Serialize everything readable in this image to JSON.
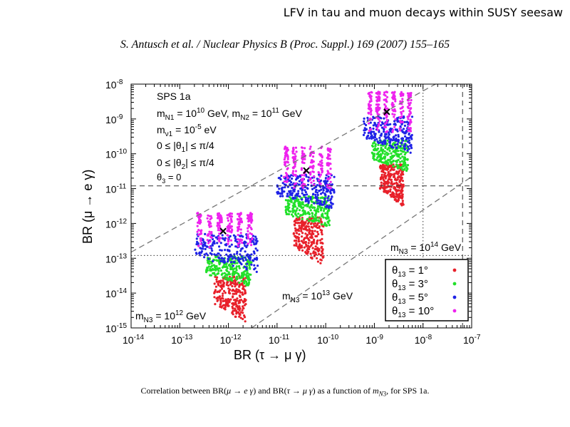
{
  "header": {
    "title": "LFV in tau and muon decays within SUSY seesaw",
    "citation": "S. Antusch et al. / Nuclear Physics B (Proc. Suppl.) 169 (2007) 155–165"
  },
  "caption": "Correlation between BR(μ → e γ) and BR(τ → μ γ) as a function of m_N3, for SPS 1a.",
  "chart_data": {
    "type": "scatter",
    "x_scale": "log",
    "y_scale": "log",
    "xlim": [
      1e-14,
      1e-07
    ],
    "ylim": [
      1e-15,
      1e-08
    ],
    "xlabel": "BR (τ → μ γ)",
    "ylabel": "BR (μ → e γ)",
    "x_ticks": [
      {
        "value": 1e-14,
        "base": "10",
        "exp": "-14"
      },
      {
        "value": 1e-13,
        "base": "10",
        "exp": "-13"
      },
      {
        "value": 1e-12,
        "base": "10",
        "exp": "-12"
      },
      {
        "value": 1e-11,
        "base": "10",
        "exp": "-11"
      },
      {
        "value": 1e-10,
        "base": "10",
        "exp": "-10"
      },
      {
        "value": 1e-09,
        "base": "10",
        "exp": "-9"
      },
      {
        "value": 1e-08,
        "base": "10",
        "exp": "-8"
      },
      {
        "value": 1e-07,
        "base": "10",
        "exp": "-7"
      }
    ],
    "y_ticks": [
      {
        "value": 1e-15,
        "base": "10",
        "exp": "-15"
      },
      {
        "value": 1e-14,
        "base": "10",
        "exp": "-14"
      },
      {
        "value": 1e-13,
        "base": "10",
        "exp": "-13"
      },
      {
        "value": 1e-12,
        "base": "10",
        "exp": "-12"
      },
      {
        "value": 1e-11,
        "base": "10",
        "exp": "-11"
      },
      {
        "value": 1e-10,
        "base": "10",
        "exp": "-10"
      },
      {
        "value": 1e-09,
        "base": "10",
        "exp": "-9"
      },
      {
        "value": 1e-08,
        "base": "10",
        "exp": "-8"
      }
    ],
    "info_text": [
      {
        "text": "SPS 1a"
      },
      {
        "text": "m_N1 = 10^10 GeV, m_N2 = 10^11 GeV"
      },
      {
        "text": "m_ν1 = 10^-5 eV"
      },
      {
        "text": "0 ≤ |θ1| ≤ π/4"
      },
      {
        "text": "0 ≤ |θ2| ≤ π/4"
      },
      {
        "text": "θ3 = 0"
      }
    ],
    "legend": {
      "position": "bottom-right",
      "entries": [
        {
          "label": "θ13 = 1°",
          "color": "#e8202a"
        },
        {
          "label": "θ13 = 3°",
          "color": "#22e02a"
        },
        {
          "label": "θ13 = 5°",
          "color": "#1f22e6"
        },
        {
          "label": "θ13 = 10°",
          "color": "#ee22ee"
        }
      ]
    },
    "clusters": [
      {
        "label": "m_N3 = 10^12 GeV",
        "best_fit": {
          "x": 7.8e-13,
          "y": 6e-13
        },
        "layers": [
          {
            "color": "#ee22ee",
            "x_range": [
              1e-13,
              4e-12
            ],
            "y_range": [
              2e-13,
              2e-12
            ]
          },
          {
            "color": "#1f22e6",
            "x_range": [
              2e-13,
              4e-12
            ],
            "y_range": [
              4e-14,
              5e-13
            ]
          },
          {
            "color": "#22e02a",
            "x_range": [
              3.5e-13,
              3e-12
            ],
            "y_range": [
              1.5e-14,
              1.2e-13
            ]
          },
          {
            "color": "#e8202a",
            "x_range": [
              5e-13,
              2.3e-12
            ],
            "y_range": [
              1.4e-15,
              3e-14
            ]
          }
        ]
      },
      {
        "label": "m_N3 = 10^13 GeV",
        "best_fit": {
          "x": 4e-11,
          "y": 3.3e-11
        },
        "layers": [
          {
            "color": "#ee22ee",
            "x_range": [
              7e-12,
              1.6e-10
            ],
            "y_range": [
              1e-11,
              1.6e-10
            ]
          },
          {
            "color": "#1f22e6",
            "x_range": [
              1e-11,
              1.5e-10
            ],
            "y_range": [
              2.5e-12,
              2.5e-11
            ]
          },
          {
            "color": "#22e02a",
            "x_range": [
              1.5e-11,
              1.2e-10
            ],
            "y_range": [
              8e-13,
              6e-12
            ]
          },
          {
            "color": "#e8202a",
            "x_range": [
              2.2e-11,
              9e-11
            ],
            "y_range": [
              6e-14,
              1.5e-12
            ]
          }
        ]
      },
      {
        "label": "m_N3 = 10^14 GeV",
        "best_fit": {
          "x": 1.8e-09,
          "y": 1.6e-09
        },
        "layers": [
          {
            "color": "#ee22ee",
            "x_range": [
              4e-10,
              7e-09
            ],
            "y_range": [
              4e-10,
              6e-09
            ]
          },
          {
            "color": "#1f22e6",
            "x_range": [
              6e-10,
              6e-09
            ],
            "y_range": [
              1e-10,
              1.2e-09
            ]
          },
          {
            "color": "#22e02a",
            "x_range": [
              9e-10,
              5e-09
            ],
            "y_range": [
              3e-11,
              2.5e-10
            ]
          },
          {
            "color": "#e8202a",
            "x_range": [
              1.3e-09,
              4e-09
            ],
            "y_range": [
              3e-12,
              5e-11
            ]
          }
        ]
      }
    ],
    "reference_lines": [
      {
        "style": "dotted",
        "orientation": "horizontal",
        "value": 1.2e-13
      },
      {
        "style": "dotted",
        "orientation": "vertical",
        "value": 1e-08
      },
      {
        "style": "dashed",
        "orientation": "horizontal",
        "value": 1.2e-11
      },
      {
        "style": "dashed",
        "orientation": "vertical",
        "value": 6.5e-08
      }
    ],
    "diagonal_lines": [
      {
        "style": "dashed",
        "from": [
          1e-14,
          1.5e-13
        ],
        "to": [
          1.8e-08,
          1e-08
        ]
      },
      {
        "style": "dashed",
        "from": [
          3e-12,
          1e-15
        ],
        "to": [
          1e-07,
          2.2e-11
        ]
      }
    ]
  }
}
